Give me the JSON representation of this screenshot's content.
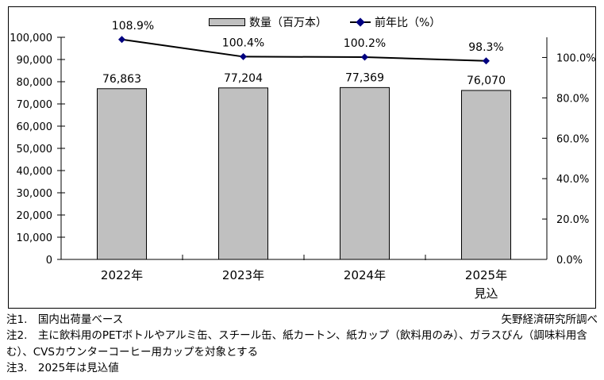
{
  "legend": {
    "quantity_label": "数量（百万本）",
    "yoy_label": "前年比（%）"
  },
  "chart_data": {
    "type": "combo",
    "title": "",
    "categories": [
      "2022年",
      "2023年",
      "2024年",
      "2025年"
    ],
    "category_sublabels": [
      "",
      "",
      "",
      "見込"
    ],
    "series": [
      {
        "name": "数量（百万本）",
        "type": "bar",
        "axis": "left",
        "color": "#c0c0c0",
        "border_color": "#000000",
        "values": [
          76863,
          77204,
          77369,
          76070
        ],
        "value_labels": [
          "76,863",
          "77,204",
          "77,369",
          "76,070"
        ]
      },
      {
        "name": "前年比（%）",
        "type": "line",
        "axis": "right",
        "line_color": "#000000",
        "marker": "diamond",
        "marker_color": "#000080",
        "values": [
          108.9,
          100.4,
          100.2,
          98.3
        ],
        "value_labels": [
          "108.9%",
          "100.4%",
          "100.2%",
          "98.3%"
        ]
      }
    ],
    "left_axis": {
      "min": 0,
      "max": 100000,
      "tick_values": [
        0,
        10000,
        20000,
        30000,
        40000,
        50000,
        60000,
        70000,
        80000,
        90000,
        100000
      ],
      "tick_labels": [
        "0",
        "10,000",
        "20,000",
        "30,000",
        "40,000",
        "50,000",
        "60,000",
        "70,000",
        "80,000",
        "90,000",
        "100,000"
      ]
    },
    "right_axis": {
      "min": 0,
      "max": 110,
      "tick_values": [
        0,
        20,
        40,
        60,
        80,
        100
      ],
      "tick_labels": [
        "0.0%",
        "20.0%",
        "40.0%",
        "60.0%",
        "80.0%",
        "100.0%"
      ]
    },
    "legend_position": "top",
    "grid": false
  },
  "notes": {
    "note1": "注1.　国内出荷量ベース",
    "source": "矢野経済研究所調べ",
    "note2": "注2.　主に飲料用のPETボトルやアルミ缶、スチール缶、紙カートン、紙カップ（飲料用のみ）、ガラスびん（調味料用含む）、CVSカウンターコーヒー用カップを対象とする",
    "note3": "注3.　2025年は見込値"
  }
}
